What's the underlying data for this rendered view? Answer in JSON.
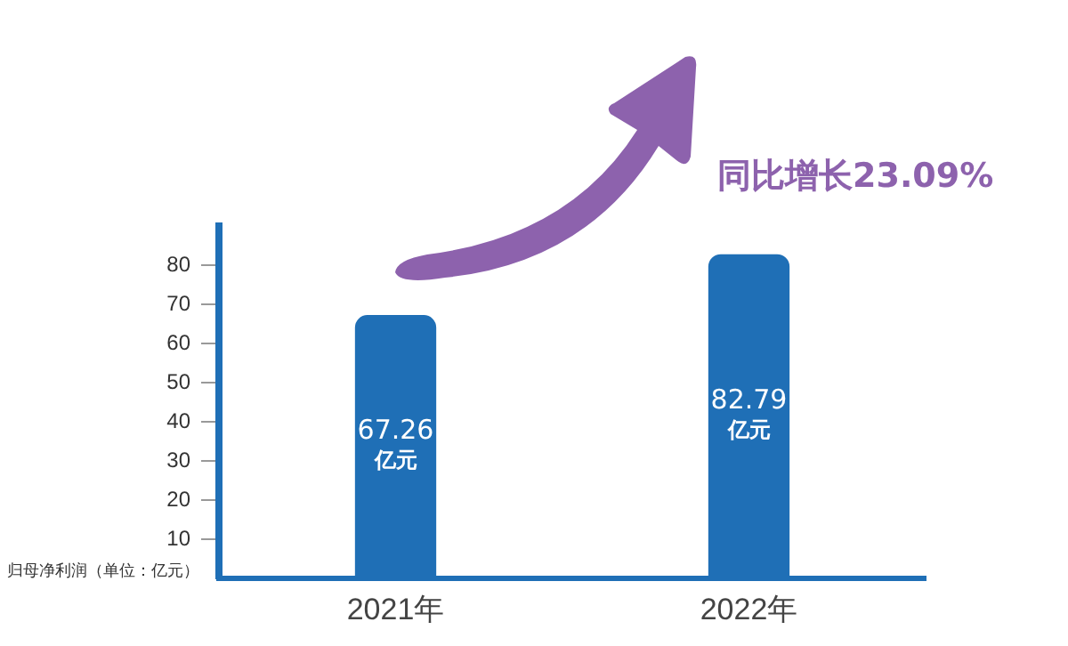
{
  "chart_data": {
    "type": "bar",
    "categories": [
      "2021年",
      "2022年"
    ],
    "values": [
      67.26,
      82.79
    ],
    "color": "#1f6fb6",
    "value_labels": [
      "67.26亿元",
      "82.79亿元"
    ],
    "ylabel": "归母净利润（单位：亿元）",
    "annotations": [
      "同比增长23.09%"
    ],
    "ylim": [
      0,
      90
    ],
    "yticks": [
      10,
      20,
      30,
      40,
      50,
      60,
      70,
      80
    ],
    "grid": false,
    "legend": false
  }
}
